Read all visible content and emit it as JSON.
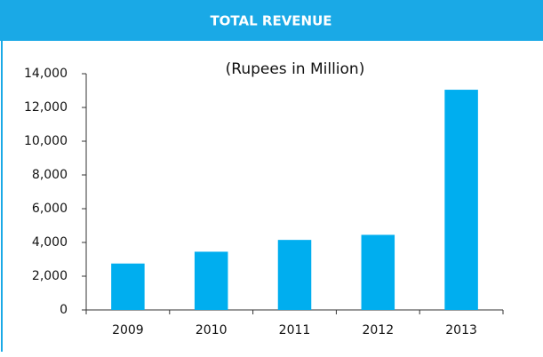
{
  "chart_data": {
    "type": "bar",
    "title": "TOTAL REVENUE",
    "subtitle": "(Rupees in Million)",
    "categories": [
      "2009",
      "2010",
      "2011",
      "2012",
      "2013"
    ],
    "values": [
      2750,
      3450,
      4150,
      4450,
      13050
    ],
    "color": "#00aeef",
    "ylim": [
      0,
      14000
    ],
    "yticks": [
      0,
      {
        "value": 2000,
        "label": "2,000"
      },
      {
        "value": 4000,
        "label": "4,000"
      },
      {
        "value": 6000,
        "label": "6,000"
      },
      {
        "value": 8000,
        "label": "8,000"
      },
      {
        "value": 10000,
        "label": "10,000"
      },
      {
        "value": 12000,
        "label": "12,000"
      },
      {
        "value": 14000,
        "label": "14,000"
      }
    ],
    "grid": false
  }
}
